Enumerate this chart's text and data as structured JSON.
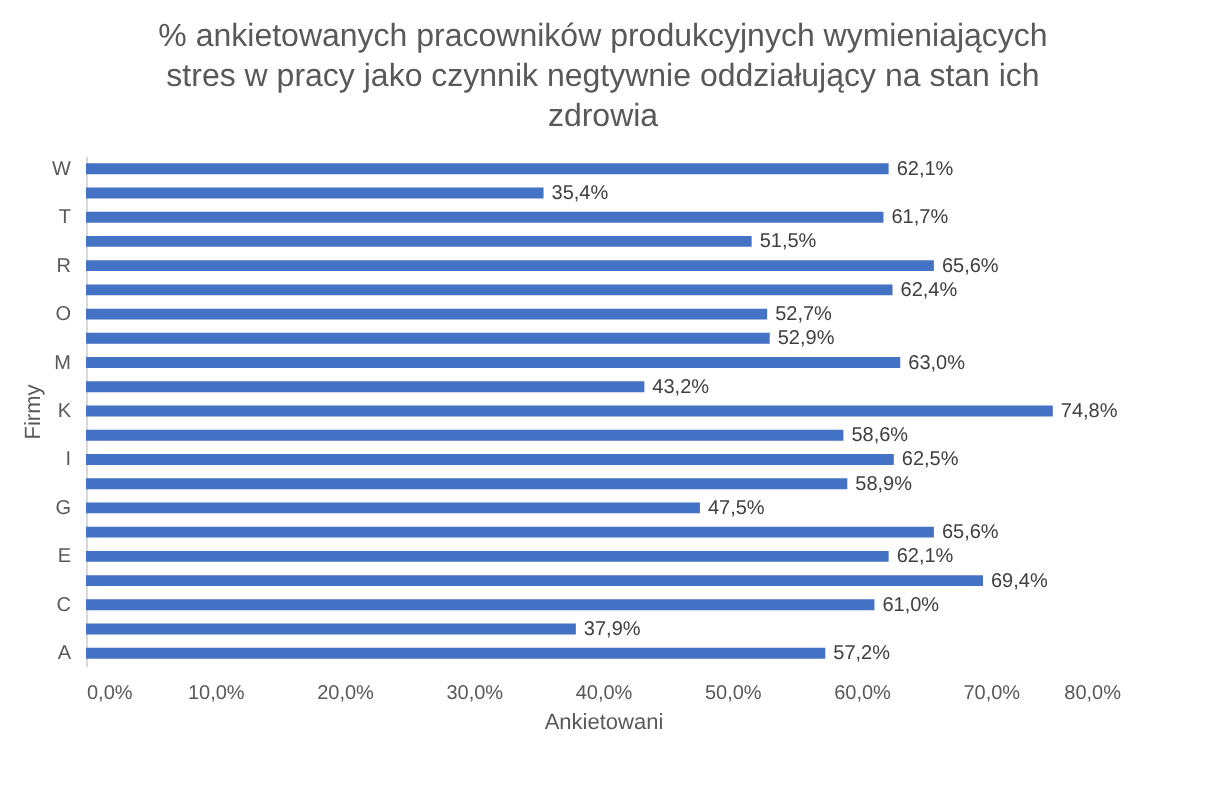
{
  "chart_data": {
    "type": "bar",
    "orientation": "horizontal",
    "title": "% ankietowanych pracowników produkcyjnych wymieniających stres w pracy jako czynnik negtywnie oddziałujący na stan ich zdrowia",
    "xlabel": "Ankietowani",
    "ylabel": "Firmy",
    "categories": [
      "W",
      null,
      "T",
      null,
      "R",
      null,
      "O",
      null,
      "M",
      null,
      "K",
      null,
      "I",
      null,
      "G",
      null,
      "E",
      null,
      "C",
      null,
      "A"
    ],
    "values": [
      62.1,
      35.4,
      61.7,
      51.5,
      65.6,
      62.4,
      52.7,
      52.9,
      63.0,
      43.2,
      74.8,
      58.6,
      62.5,
      58.9,
      47.5,
      65.6,
      62.1,
      69.4,
      61.0,
      37.9,
      57.2
    ],
    "value_labels": [
      "62,1%",
      "35,4%",
      "61,7%",
      "51,5%",
      "65,6%",
      "62,4%",
      "52,7%",
      "52,9%",
      "63,0%",
      "43,2%",
      "74,8%",
      "58,6%",
      "62,5%",
      "58,9%",
      "47,5%",
      "65,6%",
      "62,1%",
      "69,4%",
      "61,0%",
      "37,9%",
      "57,2%"
    ],
    "color": "#4472c4",
    "xlim": [
      0,
      80
    ],
    "xticks": [
      {
        "value": 0,
        "label": "0,0%"
      },
      {
        "value": 10,
        "label": "10,0%"
      },
      {
        "value": 20,
        "label": "20,0%"
      },
      {
        "value": 30,
        "label": "30,0%"
      },
      {
        "value": 40,
        "label": "40,0%"
      },
      {
        "value": 50,
        "label": "50,0%"
      },
      {
        "value": 60,
        "label": "60,0%"
      },
      {
        "value": 70,
        "label": "70,0%"
      },
      {
        "value": 80,
        "label": "80,0%"
      }
    ],
    "grid": false
  }
}
